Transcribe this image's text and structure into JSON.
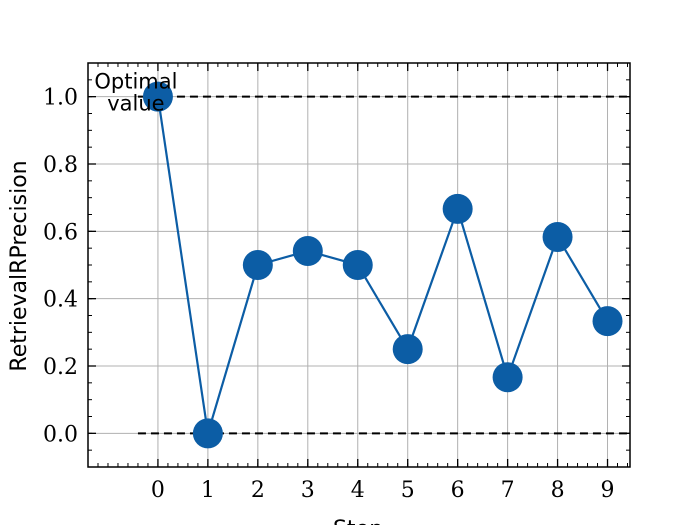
{
  "chart_data": {
    "type": "line",
    "title": "",
    "xlabel": "Step",
    "ylabel": "RetrievalRPrecision",
    "x": [
      0,
      1,
      2,
      3,
      4,
      5,
      6,
      7,
      8,
      9
    ],
    "series": [
      {
        "values": [
          1.0,
          0.0,
          0.5,
          0.5417,
          0.5,
          0.25,
          0.6667,
          0.1667,
          0.5833,
          0.3333
        ],
        "color": "#0c5da5"
      }
    ],
    "xlim": [
      -1.4,
      9.45
    ],
    "ylim": [
      -0.1,
      1.1
    ],
    "xticks": [
      "0",
      "1",
      "2",
      "3",
      "4",
      "5",
      "6",
      "7",
      "8",
      "9"
    ],
    "yticks": [
      "0.0",
      "0.2",
      "0.4",
      "0.6",
      "0.8",
      "1.0"
    ],
    "reference_lines": [
      {
        "y": 1.0,
        "style": "dashed",
        "color": "#000000"
      },
      {
        "y": 0.0,
        "style": "dashed",
        "color": "#000000"
      }
    ],
    "annotations": [
      {
        "lines": [
          "Optimal",
          "value"
        ],
        "x": 0,
        "y": 1.0
      }
    ],
    "grid": true
  }
}
